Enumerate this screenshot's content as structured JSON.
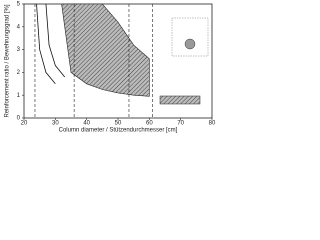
{
  "chart_data": {
    "type": "line",
    "xlabel": "Column diameter / Stützendurchmesser [cm]",
    "ylabel": "Reinforcement ratio / Bewehrungsgrad [%]",
    "xlim": [
      20,
      80
    ],
    "xticks": [
      20,
      30,
      40,
      50,
      60,
      70,
      80
    ],
    "ylim": [
      0,
      5
    ],
    "yticks": [
      0,
      1,
      2,
      3,
      4,
      5
    ],
    "band": {
      "color": "#888888",
      "x": [
        32,
        35,
        40,
        45,
        50,
        55,
        60
      ],
      "upper": [
        5,
        5,
        5,
        5,
        4.2,
        3.2,
        2.6
      ],
      "lower": [
        5,
        2.0,
        1.5,
        1.25,
        1.1,
        1.0,
        0.95
      ]
    },
    "series": [
      {
        "color": "#111111",
        "x": [
          24,
          25,
          27,
          30
        ],
        "values": [
          5,
          3,
          2,
          1.5
        ]
      },
      {
        "color": "#111111",
        "x": [
          27,
          28,
          30,
          33
        ],
        "values": [
          5,
          3.2,
          2.3,
          1.8
        ]
      }
    ],
    "vlines": [
      23.5,
      36,
      53.5,
      61
    ]
  }
}
